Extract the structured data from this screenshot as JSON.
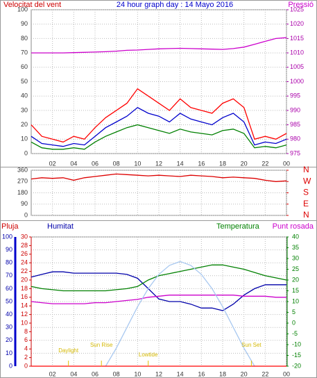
{
  "chart_data": [
    {
      "type": "line",
      "title": "24 hour graph day : 14 Mayo 2016",
      "y_label": "Velocitat del vent",
      "y2_label": "Pressió",
      "x": [
        0,
        1,
        2,
        3,
        4,
        5,
        6,
        7,
        8,
        9,
        10,
        11,
        12,
        13,
        14,
        15,
        16,
        17,
        18,
        19,
        20,
        21,
        22,
        23,
        24
      ],
      "xlim": [
        0,
        24
      ],
      "xticks": [
        {
          "value": 2,
          "label": "02"
        },
        {
          "value": 4,
          "label": "04"
        },
        {
          "value": 6,
          "label": "06"
        },
        {
          "value": 8,
          "label": "08"
        },
        10,
        12,
        14,
        16,
        18,
        20,
        22,
        {
          "value": 24,
          "label": "00"
        }
      ],
      "ylim": [
        0,
        100
      ],
      "yticks": [
        0,
        10,
        20,
        30,
        40,
        50,
        60,
        70,
        80,
        90,
        100
      ],
      "y2lim": [
        975,
        1025
      ],
      "y2ticks": [
        975,
        980,
        985,
        990,
        995,
        1000,
        1005,
        1010,
        1015,
        1020,
        1025
      ],
      "grid": true,
      "series": [
        {
          "color": "#ff0000",
          "values": [
            20,
            12,
            10,
            8,
            12,
            10,
            18,
            25,
            30,
            35,
            45,
            40,
            35,
            30,
            38,
            32,
            30,
            28,
            35,
            38,
            32,
            10,
            12,
            10,
            14
          ]
        },
        {
          "color": "#0000cc",
          "values": [
            12,
            7,
            6,
            5,
            7,
            6,
            12,
            18,
            22,
            26,
            32,
            28,
            26,
            22,
            28,
            24,
            22,
            20,
            25,
            28,
            22,
            6,
            8,
            7,
            10
          ]
        },
        {
          "color": "#008000",
          "values": [
            8,
            4,
            3,
            3,
            4,
            3,
            8,
            12,
            15,
            18,
            20,
            18,
            16,
            14,
            17,
            15,
            14,
            13,
            16,
            17,
            14,
            4,
            5,
            4,
            6
          ]
        },
        {
          "color": "#cc00cc",
          "axis": "y2",
          "values": [
            1010,
            1010,
            1010,
            1010,
            1010.1,
            1010.2,
            1010.3,
            1010.4,
            1010.6,
            1010.9,
            1011,
            1011.2,
            1011.4,
            1011.5,
            1011.6,
            1011.5,
            1011.4,
            1011.3,
            1011.2,
            1011.5,
            1012,
            1013,
            1014,
            1015,
            1015.3
          ]
        }
      ]
    },
    {
      "type": "line",
      "x": [
        0,
        1,
        2,
        3,
        4,
        5,
        6,
        7,
        8,
        9,
        10,
        11,
        12,
        13,
        14,
        15,
        16,
        17,
        18,
        19,
        20,
        21,
        22,
        23,
        24
      ],
      "xlim": [
        0,
        24
      ],
      "xticks": [
        2,
        4,
        6,
        8,
        10,
        12,
        14,
        16,
        18,
        20,
        22,
        24
      ],
      "ylim": [
        0,
        360
      ],
      "yticks": [
        0,
        90,
        180,
        270,
        360
      ],
      "y2lim": [
        0,
        360
      ],
      "y2ticks": [
        {
          "value": 360,
          "label": "N"
        },
        {
          "value": 270,
          "label": "W"
        },
        {
          "value": 180,
          "label": "S"
        },
        {
          "value": 90,
          "label": "E"
        },
        {
          "value": 0,
          "label": "N"
        }
      ],
      "grid": true,
      "series": [
        {
          "color": "#dd0000",
          "values": [
            290,
            300,
            295,
            300,
            280,
            300,
            310,
            320,
            330,
            325,
            320,
            315,
            320,
            315,
            310,
            320,
            315,
            310,
            300,
            305,
            300,
            295,
            280,
            270,
            275
          ]
        }
      ]
    },
    {
      "type": "line",
      "y3_label": "Pluja",
      "y_label": "Humitat",
      "y2_label": "Temperatura",
      "x": [
        0,
        1,
        2,
        3,
        4,
        5,
        6,
        7,
        8,
        9,
        10,
        11,
        12,
        13,
        14,
        15,
        16,
        17,
        18,
        19,
        20,
        21,
        22,
        23,
        24
      ],
      "xlim": [
        0,
        24
      ],
      "xticks": [
        {
          "value": 2,
          "label": "02"
        },
        {
          "value": 4,
          "label": "04"
        },
        {
          "value": 6,
          "label": "06"
        },
        {
          "value": 8,
          "label": "08"
        },
        10,
        12,
        14,
        16,
        18,
        20,
        22,
        {
          "value": 24,
          "label": "00"
        }
      ],
      "ylim": [
        0,
        100
      ],
      "yticks": [
        0,
        10,
        20,
        30,
        40,
        50,
        60,
        70,
        80,
        90,
        100
      ],
      "y2lim": [
        -20,
        40
      ],
      "y2ticks": [
        -20,
        -15,
        -10,
        -5,
        0,
        5,
        10,
        15,
        20,
        25,
        30,
        35,
        40
      ],
      "y3lim": [
        0,
        30
      ],
      "y3ticks": [
        0,
        2,
        4,
        6,
        8,
        10,
        12,
        14,
        16,
        18,
        20,
        22,
        24,
        26,
        28,
        30
      ],
      "grid": true,
      "series": [
        {
          "color": "#0000aa",
          "values": [
            69,
            71,
            73,
            73,
            72,
            72,
            72,
            72,
            72,
            71,
            68,
            60,
            52,
            50,
            50,
            48,
            45,
            45,
            43,
            48,
            55,
            60,
            63,
            63,
            63
          ]
        },
        {
          "color": "#008000",
          "axis": "y2",
          "values": [
            17,
            16,
            15.5,
            15,
            15,
            15,
            15,
            15,
            15.5,
            16,
            17,
            20,
            22,
            23,
            24,
            25,
            26,
            27,
            27,
            26,
            25,
            23.5,
            22,
            21,
            20
          ]
        },
        {
          "name": "Punt rosada",
          "color": "#cc00cc",
          "axis": "y2",
          "values": [
            10,
            9.5,
            9,
            9,
            9,
            9,
            9.5,
            9.5,
            10,
            10.5,
            11,
            12,
            12.5,
            13,
            13,
            13,
            13,
            13,
            13,
            13,
            12.5,
            12.5,
            12.5,
            12,
            12
          ]
        },
        {
          "color": "#a8c8f0",
          "values": [
            null,
            null,
            null,
            null,
            null,
            null,
            null,
            0,
            14,
            30,
            46,
            60,
            71,
            78,
            81,
            78,
            71,
            60,
            46,
            30,
            14,
            0,
            null,
            null,
            null
          ]
        },
        {
          "color": "#ff0000",
          "axis": "y3",
          "values": [
            0,
            0,
            0,
            0,
            0,
            0,
            0,
            0,
            0,
            0,
            0,
            0,
            0,
            0,
            0,
            0,
            0,
            0,
            0,
            0,
            0,
            0,
            0,
            0,
            0
          ]
        }
      ],
      "annotations": [
        {
          "text": "Daylight",
          "x": 3.5
        },
        {
          "text": "Sun Rise",
          "x": 6.6
        },
        {
          "text": "Lowtide",
          "x": 11
        },
        {
          "text": "Sun Set",
          "x": 20.7
        }
      ]
    }
  ]
}
